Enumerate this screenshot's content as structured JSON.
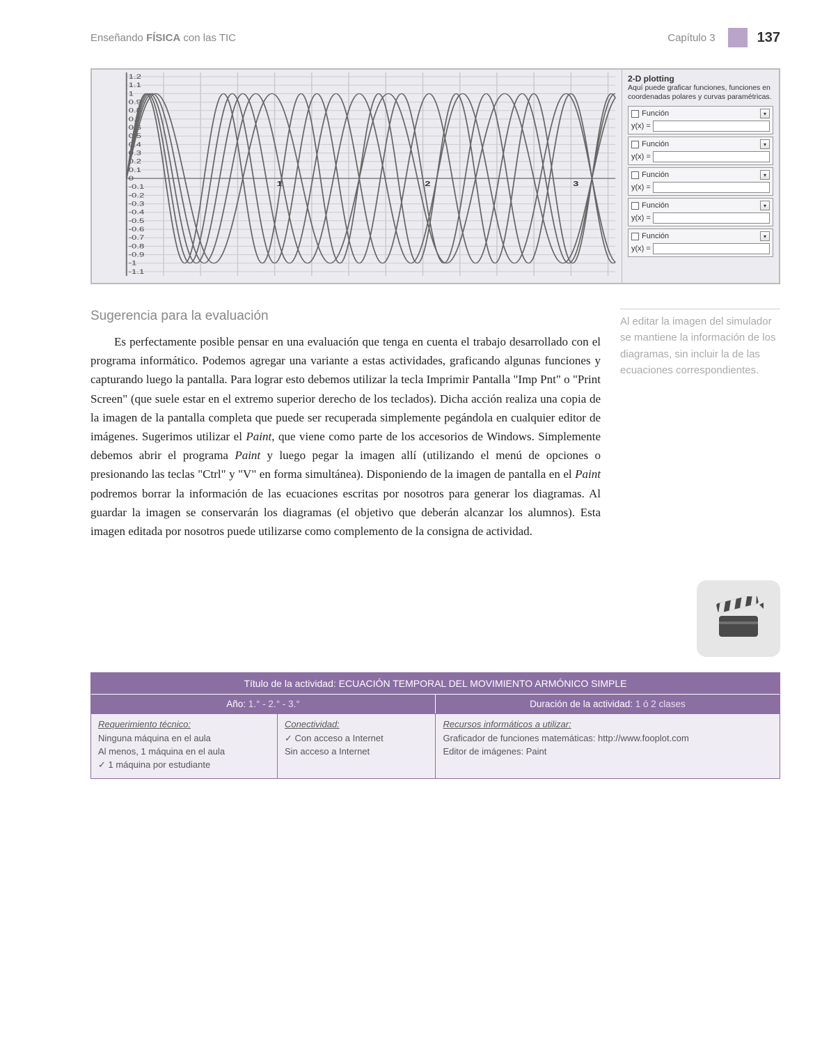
{
  "header": {
    "left_prefix": "Enseñando ",
    "left_bold": "FÍSICA",
    "left_suffix": " con las TIC",
    "chapter": "Capítulo 3",
    "page_number": "137"
  },
  "figure": {
    "plot": {
      "type": "line",
      "background_color": "#ececf0",
      "grid_color": "#c9c9cf",
      "axis_color": "#777",
      "line_color": "#666666",
      "line_width": 1.2,
      "xlim": [
        0,
        3.3
      ],
      "ylim": [
        -1.15,
        1.25
      ],
      "y_tick_labels": [
        "1.2",
        "1.1",
        "1",
        "0.9",
        "0.8",
        "0.7",
        "0.6",
        "0.5",
        "0.4",
        "0.3",
        "0.2",
        "0.1",
        "0",
        "-0.1",
        "-0.2",
        "-0.3",
        "-0.4",
        "-0.5",
        "-0.6",
        "-0.7",
        "-0.8",
        "-0.9",
        "-1",
        "-1.1"
      ],
      "x_tick_labels": [
        "1",
        "2",
        "3"
      ],
      "tick_fontsize": 9,
      "curves_count": 5,
      "amplitude": 1.0,
      "frequencies_approx": [
        8,
        9,
        10,
        11,
        12
      ]
    },
    "panel": {
      "title": "2-D plotting",
      "description": "Aquí puede graficar funciones, funciones en coordenadas polares y curvas paramétricas.",
      "func_label": "Función",
      "yx_label": "y(x) =",
      "rows": 5
    }
  },
  "section": {
    "subtitle": "Sugerencia para la evaluación",
    "paragraph": "Es perfectamente posible pensar en una evaluación que tenga en cuenta el trabajo desarrollado con el programa informático. Podemos agregar una variante a estas actividades, graficando algunas funciones y capturando luego la pantalla. Para lograr esto debemos utilizar la tecla Imprimir Pantalla \"Imp Pnt\" o \"Print Screen\" (que suele estar en el extremo superior derecho de los teclados). Dicha acción realiza una copia de la imagen de la pantalla completa que puede ser recuperada simplemente pegándola en cualquier editor de imágenes. Sugerimos utilizar el Paint, que viene como parte de los accesorios de Windows. Simplemente debemos abrir el programa Paint y luego pegar la imagen allí (utilizando el menú de opciones o presionando las teclas \"Ctrl\" y \"V\" en forma simultánea). Disponiendo de la imagen de pantalla en el Paint podremos borrar la información de las ecuaciones escritas por nosotros para generar los diagramas. Al guardar la imagen se conservarán los diagramas (el objetivo que deberán alcanzar los alumnos). Esta imagen editada por nosotros puede utilizarse como complemento de la consigna de actividad."
  },
  "aside": {
    "note": "Al editar la imagen del simulador se mantiene la información de los diagramas, sin incluir la de las ecuaciones correspondientes."
  },
  "activity": {
    "title_label": "Título de la actividad: ",
    "title_value": "ECUACIÓN TEMPORAL DEL MOVIMIENTO ARMÓNICO SIMPLE",
    "year_label": "Año: ",
    "year_value": "1.° - 2.° - 3.°",
    "duration_label": "Duración de la actividad: ",
    "duration_value": "1 ó 2 clases",
    "col1": {
      "heading": "Requerimiento técnico:",
      "opt1": "Ninguna máquina en el aula",
      "opt2": "Al menos, 1 máquina en el aula",
      "opt3": "1 máquina por estudiante"
    },
    "col2": {
      "heading": "Conectividad:",
      "opt1": "Con acceso a Internet",
      "opt2": "Sin acceso a Internet"
    },
    "col3": {
      "heading": "Recursos informáticos a utilizar:",
      "line1": "Graficador de funciones matemáticas: http://www.fooplot.com",
      "line2": "Editor de imágenes: Paint"
    },
    "colors": {
      "header_bg": "#8b6fa3",
      "body_bg": "#f0ecf4",
      "border": "#8b6fa3"
    }
  }
}
